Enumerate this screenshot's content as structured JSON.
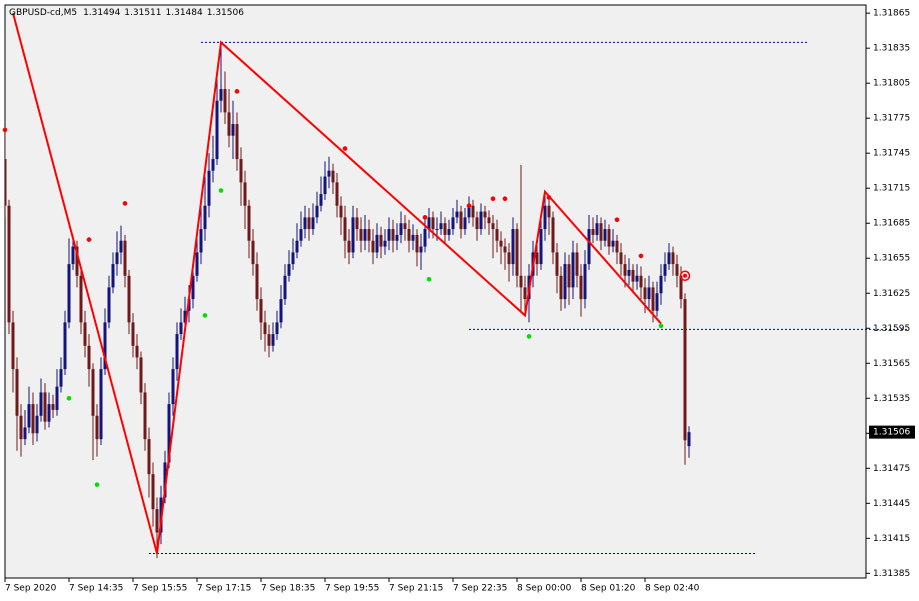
{
  "chart_data": {
    "type": "candlestick",
    "title": "GBPUSD-cd,M5",
    "bull_color": "#14147a",
    "bear_color": "#6e1a1a",
    "xlim": [
      0,
      215
    ],
    "ylim": [
      1.31381,
      1.31872
    ],
    "yticks": [
      1.31385,
      1.31415,
      1.31445,
      1.31475,
      1.31505,
      1.31535,
      1.31565,
      1.31595,
      1.31625,
      1.31655,
      1.31685,
      1.31715,
      1.31745,
      1.31775,
      1.31805,
      1.31835,
      1.31865
    ],
    "xticks": [
      {
        "value": 0,
        "label": "7 Sep 2020"
      },
      {
        "value": 16,
        "label": "7 Sep 14:35"
      },
      {
        "value": 32,
        "label": "7 Sep 15:55"
      },
      {
        "value": 48,
        "label": "7 Sep 17:15"
      },
      {
        "value": 64,
        "label": "7 Sep 18:35"
      },
      {
        "value": 80,
        "label": "7 Sep 19:55"
      },
      {
        "value": 96,
        "label": "7 Sep 21:15"
      },
      {
        "value": 112,
        "label": "7 Sep 22:35"
      },
      {
        "value": 128,
        "label": "8 Sep 00:00"
      },
      {
        "value": 144,
        "label": "8 Sep 01:20"
      },
      {
        "value": 160,
        "label": "8 Sep 02:40"
      }
    ],
    "open": [
      1.3174,
      1.317,
      1.316,
      1.3156,
      1.3152,
      1.315,
      1.3151,
      1.3153,
      1.31505,
      1.3152,
      1.3154,
      1.31515,
      1.3153,
      1.31525,
      1.31545,
      1.3156,
      1.316,
      1.3165,
      1.31665,
      1.3164,
      1.316,
      1.3158,
      1.3156,
      1.3152,
      1.315,
      1.3156,
      1.316,
      1.3163,
      1.3165,
      1.3166,
      1.3167,
      1.3164,
      1.316,
      1.3158,
      1.3157,
      1.3154,
      1.315,
      1.3147,
      1.3144,
      1.3142,
      1.3145,
      1.3148,
      1.3153,
      1.3156,
      1.3159,
      1.316,
      1.3161,
      1.3162,
      1.3164,
      1.3166,
      1.3168,
      1.317,
      1.3173,
      1.3174,
      1.3179,
      1.318,
      1.3178,
      1.3176,
      1.3177,
      1.3174,
      1.3172,
      1.317,
      1.3167,
      1.3165,
      1.3162,
      1.316,
      1.3159,
      1.3158,
      1.3159,
      1.316,
      1.3162,
      1.3164,
      1.3165,
      1.3166,
      1.3167,
      1.3168,
      1.3169,
      1.3168,
      1.3169,
      1.317,
      1.3171,
      1.31725,
      1.3173,
      1.3172,
      1.317,
      1.3169,
      1.3167,
      1.3166,
      1.3169,
      1.3168,
      1.3167,
      1.3168,
      1.3167,
      1.3166,
      1.31675,
      1.31665,
      1.3167,
      1.3168,
      1.3167,
      1.31675,
      1.31685,
      1.3168,
      1.3167,
      1.31675,
      1.3166,
      1.31665,
      1.3168,
      1.3169,
      1.3168,
      1.3168,
      1.31685,
      1.31675,
      1.3168,
      1.3169,
      1.31695,
      1.3168,
      1.3169,
      1.317,
      1.3169,
      1.3168,
      1.31695,
      1.3169,
      1.31685,
      1.3168,
      1.3167,
      1.31665,
      1.3166,
      1.3165,
      1.3168,
      1.3164,
      1.3163,
      1.3162,
      1.3164,
      1.3166,
      1.3165,
      1.3168,
      1.317,
      1.3169,
      1.3166,
      1.3164,
      1.3162,
      1.3165,
      1.3163,
      1.3166,
      1.3164,
      1.3162,
      1.3165,
      1.3168,
      1.31675,
      1.31685,
      1.3167,
      1.3168,
      1.31665,
      1.3167,
      1.3166,
      1.3165,
      1.3164,
      1.31645,
      1.31635,
      1.3164,
      1.3163,
      1.3162,
      1.3163,
      1.3161,
      1.31625,
      1.3164,
      1.3165,
      1.3166,
      1.3165,
      1.3164,
      1.3162,
      1.31494
    ],
    "high": [
      1.31765,
      1.31705,
      1.3161,
      1.3157,
      1.3153,
      1.31525,
      1.31545,
      1.3154,
      1.3153,
      1.31552,
      1.31548,
      1.3154,
      1.31538,
      1.3156,
      1.3157,
      1.3161,
      1.31672,
      1.31675,
      1.3167,
      1.31648,
      1.3161,
      1.3159,
      1.31565,
      1.3153,
      1.3157,
      1.31612,
      1.3164,
      1.3166,
      1.31678,
      1.31683,
      1.31675,
      1.31645,
      1.31608,
      1.3159,
      1.31575,
      1.31548,
      1.3151,
      1.3148,
      1.3145,
      1.3146,
      1.3149,
      1.3154,
      1.3157,
      1.316,
      1.31612,
      1.31622,
      1.31632,
      1.3165,
      1.31672,
      1.317,
      1.31725,
      1.31745,
      1.3176,
      1.3181,
      1.3184,
      1.31815,
      1.318,
      1.3179,
      1.3178,
      1.3175,
      1.3173,
      1.31705,
      1.3168,
      1.3166,
      1.3163,
      1.3161,
      1.31598,
      1.316,
      1.3161,
      1.31632,
      1.3165,
      1.31662,
      1.31672,
      1.31685,
      1.31695,
      1.317,
      1.31698,
      1.31702,
      1.31712,
      1.31725,
      1.31738,
      1.31742,
      1.31736,
      1.31728,
      1.31708,
      1.317,
      1.3168,
      1.317,
      1.31698,
      1.3169,
      1.31692,
      1.31688,
      1.3168,
      1.31685,
      1.31682,
      1.3168,
      1.3169,
      1.31688,
      1.31685,
      1.31695,
      1.31692,
      1.31688,
      1.31684,
      1.3168,
      1.31676,
      1.31692,
      1.31698,
      1.31695,
      1.3169,
      1.31695,
      1.3169,
      1.31688,
      1.31698,
      1.31705,
      1.317,
      1.31698,
      1.31708,
      1.31705,
      1.31695,
      1.31702,
      1.317,
      1.31696,
      1.31692,
      1.31688,
      1.31678,
      1.31672,
      1.31668,
      1.3169,
      1.31685,
      1.31735,
      1.3164,
      1.3165,
      1.3167,
      1.31668,
      1.3169,
      1.31712,
      1.31708,
      1.31695,
      1.31668,
      1.31648,
      1.3166,
      1.31658,
      1.3167,
      1.31668,
      1.3165,
      1.31662,
      1.31692,
      1.3169,
      1.31692,
      1.3169,
      1.31688,
      1.31684,
      1.3168,
      1.31675,
      1.31668,
      1.31658,
      1.31655,
      1.3165,
      1.3165,
      1.31648,
      1.31638,
      1.3164,
      1.31635,
      1.31635,
      1.3165,
      1.3166,
      1.31668,
      1.31665,
      1.31658,
      1.31648,
      1.31625,
      1.31511
    ],
    "low": [
      1.3169,
      1.3159,
      1.3154,
      1.3149,
      1.31485,
      1.31495,
      1.31505,
      1.31495,
      1.31498,
      1.31515,
      1.31508,
      1.3151,
      1.31518,
      1.3152,
      1.3154,
      1.31555,
      1.31595,
      1.31645,
      1.3163,
      1.3159,
      1.3157,
      1.31545,
      1.31482,
      1.31485,
      1.31495,
      1.31555,
      1.31595,
      1.31625,
      1.3164,
      1.3165,
      1.3163,
      1.3159,
      1.3157,
      1.3156,
      1.3153,
      1.3149,
      1.3145,
      1.31425,
      1.31398,
      1.3141,
      1.31445,
      1.31475,
      1.3152,
      1.3155,
      1.31585,
      1.31595,
      1.316,
      1.31612,
      1.31635,
      1.3165,
      1.3167,
      1.3169,
      1.3172,
      1.31735,
      1.3178,
      1.3177,
      1.3175,
      1.3174,
      1.3173,
      1.317,
      1.3168,
      1.31655,
      1.3164,
      1.3161,
      1.31585,
      1.31575,
      1.3157,
      1.31575,
      1.31585,
      1.31595,
      1.31615,
      1.31635,
      1.31645,
      1.31655,
      1.31665,
      1.31672,
      1.3167,
      1.31675,
      1.31685,
      1.31695,
      1.31705,
      1.31715,
      1.3171,
      1.3169,
      1.31675,
      1.31655,
      1.3165,
      1.31655,
      1.3167,
      1.3166,
      1.31662,
      1.3166,
      1.3165,
      1.31655,
      1.31655,
      1.31658,
      1.31662,
      1.3166,
      1.31662,
      1.31668,
      1.3167,
      1.3166,
      1.31662,
      1.31648,
      1.31645,
      1.3166,
      1.31672,
      1.31672,
      1.3167,
      1.31675,
      1.31668,
      1.3167,
      1.31675,
      1.31685,
      1.31672,
      1.31675,
      1.31685,
      1.31682,
      1.3167,
      1.31675,
      1.3168,
      1.31675,
      1.31655,
      1.3166,
      1.3165,
      1.31645,
      1.31635,
      1.3164,
      1.3163,
      1.3161,
      1.31608,
      1.316,
      1.3163,
      1.3164,
      1.31645,
      1.3167,
      1.31675,
      1.3165,
      1.31625,
      1.3161,
      1.31612,
      1.31615,
      1.3162,
      1.3163,
      1.31605,
      1.31612,
      1.31645,
      1.31668,
      1.3167,
      1.31662,
      1.31665,
      1.31658,
      1.3166,
      1.3165,
      1.3164,
      1.3163,
      1.31632,
      1.31625,
      1.31628,
      1.3162,
      1.31608,
      1.31612,
      1.316,
      1.31605,
      1.31615,
      1.31635,
      1.31645,
      1.3164,
      1.3163,
      1.31612,
      1.31478,
      1.31484
    ],
    "close": [
      1.317,
      1.316,
      1.3156,
      1.3152,
      1.315,
      1.3151,
      1.3153,
      1.31505,
      1.3152,
      1.3154,
      1.31515,
      1.3153,
      1.31525,
      1.31545,
      1.3156,
      1.316,
      1.3165,
      1.31665,
      1.3164,
      1.316,
      1.3158,
      1.3156,
      1.3152,
      1.315,
      1.3156,
      1.316,
      1.3163,
      1.3165,
      1.3166,
      1.3167,
      1.3164,
      1.316,
      1.3158,
      1.3157,
      1.3154,
      1.315,
      1.3147,
      1.3144,
      1.3142,
      1.3145,
      1.3148,
      1.3153,
      1.3156,
      1.3159,
      1.316,
      1.3161,
      1.3162,
      1.3164,
      1.3166,
      1.3168,
      1.317,
      1.3173,
      1.3174,
      1.3179,
      1.318,
      1.3178,
      1.3176,
      1.3177,
      1.3174,
      1.3172,
      1.317,
      1.3167,
      1.3165,
      1.3162,
      1.316,
      1.3159,
      1.3158,
      1.3159,
      1.316,
      1.3162,
      1.3164,
      1.3165,
      1.3166,
      1.3167,
      1.3168,
      1.3169,
      1.3168,
      1.3169,
      1.317,
      1.3171,
      1.31725,
      1.3173,
      1.3172,
      1.317,
      1.3169,
      1.3167,
      1.3166,
      1.3169,
      1.3168,
      1.3167,
      1.3168,
      1.3167,
      1.3166,
      1.31675,
      1.31665,
      1.3167,
      1.3168,
      1.3167,
      1.31675,
      1.31685,
      1.3168,
      1.3167,
      1.31675,
      1.3166,
      1.31665,
      1.3168,
      1.3169,
      1.3168,
      1.3168,
      1.31685,
      1.31675,
      1.3168,
      1.3169,
      1.31695,
      1.3168,
      1.3169,
      1.317,
      1.3169,
      1.3168,
      1.31695,
      1.3169,
      1.31685,
      1.3168,
      1.3167,
      1.31665,
      1.3166,
      1.3165,
      1.3168,
      1.3164,
      1.3163,
      1.3162,
      1.3164,
      1.3166,
      1.3165,
      1.3168,
      1.317,
      1.3169,
      1.3166,
      1.3164,
      1.3162,
      1.3165,
      1.3163,
      1.3166,
      1.3164,
      1.3162,
      1.3165,
      1.3168,
      1.31675,
      1.31685,
      1.3167,
      1.3168,
      1.31665,
      1.3167,
      1.3166,
      1.3165,
      1.3164,
      1.31645,
      1.31635,
      1.3164,
      1.3163,
      1.3162,
      1.3163,
      1.3161,
      1.31625,
      1.3164,
      1.3165,
      1.3166,
      1.3165,
      1.3164,
      1.3162,
      1.31499,
      1.31506
    ],
    "zigzag": {
      "color": "#ff0000",
      "x": [
        2,
        38,
        54,
        130,
        135,
        164
      ],
      "values": [
        1.31865,
        1.31402,
        1.3184,
        1.31606,
        1.31712,
        1.31599
      ]
    },
    "fractals_up": {
      "color": "#ff0000",
      "x": [
        0,
        21,
        30,
        58,
        85,
        105,
        116,
        122,
        125,
        136,
        153,
        159
      ],
      "values": [
        1.31765,
        1.31671,
        1.31702,
        1.31798,
        1.31749,
        1.3169,
        1.317,
        1.31706,
        1.31706,
        1.31707,
        1.31688,
        1.31657
      ]
    },
    "fractals_down": {
      "color": "#00e000",
      "x": [
        16,
        23,
        50,
        54,
        106,
        131,
        164
      ],
      "values": [
        1.31535,
        1.31461,
        1.31606,
        1.31713,
        1.31637,
        1.31588,
        1.31597
      ]
    },
    "signal": {
      "color": "#ff0000",
      "x": 170,
      "value": 1.3164
    },
    "levels": {
      "color": "#0000c8",
      "items": [
        {
          "value": 1.3184,
          "from": 49,
          "to": 201
        },
        {
          "value": 1.31594,
          "from": 116,
          "to": 226
        },
        {
          "value": 1.31402,
          "from": 36,
          "to": 188
        }
      ]
    }
  }
}
